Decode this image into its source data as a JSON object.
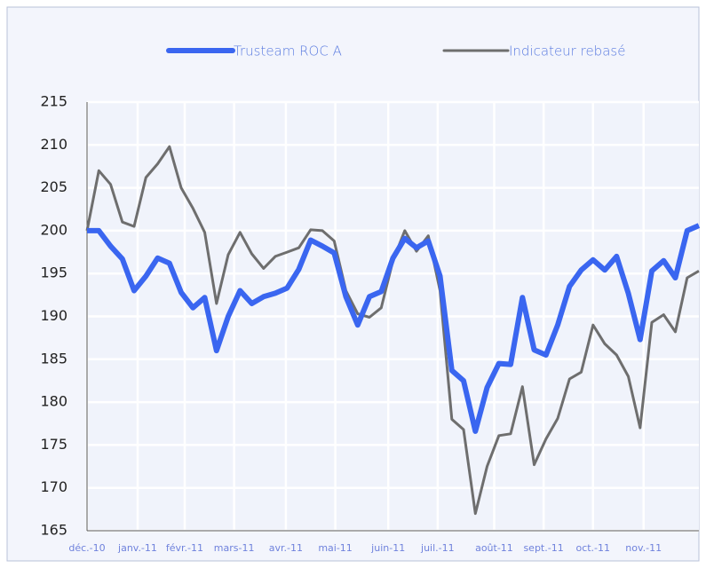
{
  "chart_data": {
    "type": "line",
    "x": [
      0,
      1,
      2,
      3,
      4,
      5,
      6,
      7,
      8,
      9,
      10,
      11,
      12,
      13,
      14,
      15,
      16,
      17,
      18,
      19,
      20,
      21,
      22,
      23,
      24,
      25,
      26,
      27,
      28,
      29,
      30,
      31,
      32,
      33,
      34,
      35,
      36,
      37,
      38,
      39,
      40,
      41,
      42,
      43,
      44,
      45,
      46,
      47,
      48,
      49,
      50,
      51,
      52
    ],
    "xlim": [
      0,
      52
    ],
    "xticks": [
      {
        "value": 0,
        "label": "déc.-10"
      },
      {
        "value": 4.3,
        "label": "janv.-11"
      },
      {
        "value": 8.3,
        "label": "févr.-11"
      },
      {
        "value": 12.5,
        "label": "mars-11"
      },
      {
        "value": 16.9,
        "label": "avr.-11"
      },
      {
        "value": 21.1,
        "label": "mai-11"
      },
      {
        "value": 25.6,
        "label": "juin-11"
      },
      {
        "value": 29.8,
        "label": "juil.-11"
      },
      {
        "value": 34.6,
        "label": "août-11"
      },
      {
        "value": 38.8,
        "label": "sept.-11"
      },
      {
        "value": 43,
        "label": "oct.-11"
      },
      {
        "value": 47.3,
        "label": "nov.-11"
      }
    ],
    "ylim": [
      165,
      215
    ],
    "yticks": [
      165,
      170,
      175,
      180,
      185,
      190,
      195,
      200,
      205,
      210,
      215
    ],
    "grid": true,
    "series": [
      {
        "name": "Trusteam ROC A",
        "color": "#3a66f0",
        "width": 6,
        "values": [
          200,
          200,
          198.2,
          196.7,
          193,
          194.7,
          196.8,
          196.2,
          192.8,
          191,
          192.2,
          186,
          190,
          193,
          191.5,
          192.3,
          192.7,
          193.3,
          195.5,
          198.9,
          198.2,
          197.4,
          192.3,
          189,
          192.3,
          192.9,
          196.8,
          199.1,
          198,
          198.8,
          194.7,
          183.7,
          182.5,
          176.6,
          181.7,
          184.5,
          184.4,
          192.2,
          186.1,
          185.5,
          189,
          193.5,
          195.4,
          196.6,
          195.4,
          197,
          192.7,
          187.3,
          195.3,
          196.5,
          194.5,
          200,
          200.6
        ]
      },
      {
        "name": "Indicateur rebasé",
        "color": "#6e6e6e",
        "width": 3,
        "values": [
          200,
          207,
          205.4,
          201,
          200.5,
          206.2,
          207.8,
          209.8,
          205,
          202.6,
          199.8,
          191.5,
          197.2,
          199.8,
          197.3,
          195.6,
          197,
          197.5,
          198,
          200.1,
          200,
          198.8,
          193,
          190.3,
          189.9,
          191,
          196.5,
          200,
          197.6,
          199.4,
          193,
          178,
          176.8,
          167,
          172.5,
          176.1,
          176.3,
          181.8,
          172.7,
          175.7,
          178.1,
          182.7,
          183.5,
          189,
          186.8,
          185.5,
          183,
          177,
          189.3,
          190.2,
          188.2,
          194.5,
          195.3
        ]
      }
    ]
  }
}
